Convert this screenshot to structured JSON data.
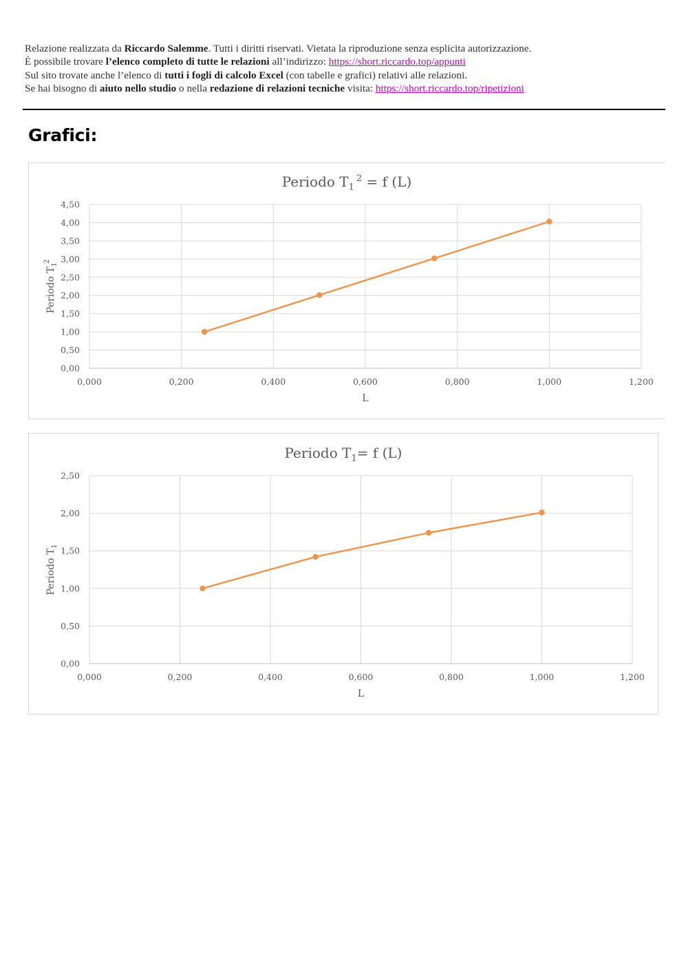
{
  "header": {
    "line1": {
      "pre": "Relazione realizzata da ",
      "bold": "Riccardo Salemme",
      "post": ". Tutti i diritti riservati. Vietata la riproduzione senza esplicita autorizzazione."
    },
    "line2": {
      "pre": "È possibile trovare ",
      "bold": "l’elenco completo di tutte le relazioni",
      "mid": " all’indirizzo: ",
      "link": "https://short.riccardo.top/appunti"
    },
    "line3": {
      "pre": "Sul sito trovate anche l’elenco di ",
      "bold": "tutti i fogli di calcolo Excel",
      "post": " (con tabelle e grafici) relativi alle relazioni."
    },
    "line4": {
      "pre": "Se hai bisogno di ",
      "bold1": "aiuto nello studio",
      "mid": " o nella ",
      "bold2": "redazione di relazioni tecniche",
      "mid2": " visita: ",
      "link": "https://short.riccardo.top/ripetizioni"
    }
  },
  "section_title": "Grafici:",
  "colors": {
    "series": "#f0944a",
    "grid": "#d9d9d9",
    "text": "#595959",
    "link": "#c800c8"
  },
  "chart_data": [
    {
      "type": "line",
      "title": "Periodo T12 = f (L)",
      "title_parts": {
        "base": "Periodo T",
        "sub": "1",
        "sup": "2",
        "rest": " = f (L)"
      },
      "xlabel": "L",
      "ylabel": "Periodo T12",
      "ylabel_parts": {
        "base": "Periodo T",
        "sub": "1",
        "sup": "2"
      },
      "xlim": [
        0,
        1.2
      ],
      "ylim": [
        0,
        4.5
      ],
      "xticks": [
        "0,000",
        "0,200",
        "0,400",
        "0,600",
        "0,800",
        "1,000",
        "1,200"
      ],
      "yticks": [
        "0,00",
        "0,50",
        "1,00",
        "1,50",
        "2,00",
        "2,50",
        "3,00",
        "3,50",
        "4,00",
        "4,50"
      ],
      "grid": true,
      "legend": "none",
      "series": [
        {
          "x": [
            0.25,
            0.5,
            0.75,
            1.0
          ],
          "values": [
            1.0,
            2.01,
            3.02,
            4.03
          ]
        }
      ]
    },
    {
      "type": "line",
      "title": "Periodo T1= f (L)",
      "title_parts": {
        "base": "Periodo T",
        "sub": "1",
        "sup": "",
        "rest": "= f (L)"
      },
      "xlabel": "L",
      "ylabel": "Periodo T1",
      "ylabel_parts": {
        "base": "Periodo T",
        "sub": "1",
        "sup": ""
      },
      "xlim": [
        0,
        1.2
      ],
      "ylim": [
        0,
        2.5
      ],
      "xticks": [
        "0,000",
        "0,200",
        "0,400",
        "0,600",
        "0,800",
        "1,000",
        "1,200"
      ],
      "yticks": [
        "0,00",
        "0,50",
        "1,00",
        "1,50",
        "2,00",
        "2,50"
      ],
      "grid": true,
      "legend": "none",
      "series": [
        {
          "x": [
            0.25,
            0.5,
            0.75,
            1.0
          ],
          "values": [
            1.0,
            1.42,
            1.74,
            2.01
          ]
        }
      ]
    }
  ]
}
